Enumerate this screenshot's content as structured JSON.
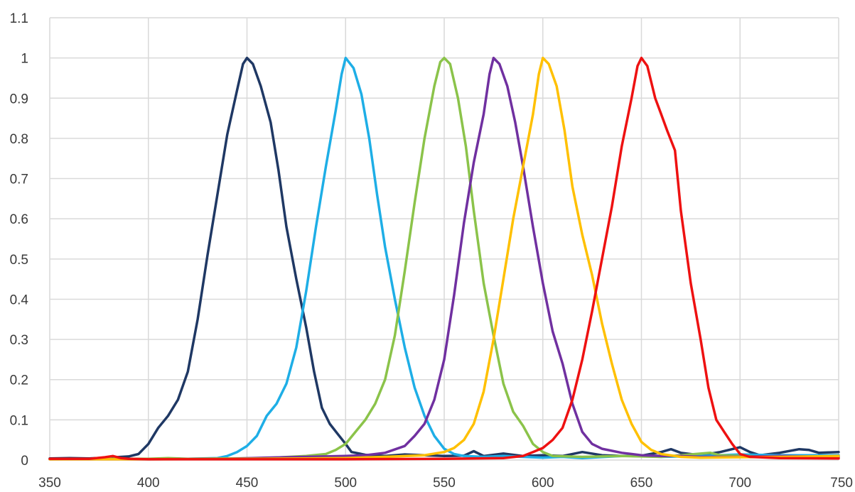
{
  "chart_data": {
    "type": "line",
    "title": "",
    "xlabel": "",
    "ylabel": "",
    "xlim": [
      350,
      750
    ],
    "ylim": [
      0,
      1.1
    ],
    "grid": true,
    "legend": "none",
    "x_ticks": [
      "350",
      "400",
      "450",
      "500",
      "550",
      "600",
      "650",
      "700",
      "750"
    ],
    "y_ticks": [
      "0",
      "0.1",
      "0.2",
      "0.3",
      "0.4",
      "0.5",
      "0.6",
      "0.7",
      "0.8",
      "0.9",
      "1",
      "1.1"
    ],
    "series": [
      {
        "color": "#1f3864",
        "points": [
          [
            350,
            0.004
          ],
          [
            360,
            0.005
          ],
          [
            370,
            0.004
          ],
          [
            380,
            0.006
          ],
          [
            390,
            0.009
          ],
          [
            395,
            0.015
          ],
          [
            400,
            0.04
          ],
          [
            405,
            0.08
          ],
          [
            410,
            0.11
          ],
          [
            415,
            0.15
          ],
          [
            420,
            0.22
          ],
          [
            425,
            0.35
          ],
          [
            430,
            0.51
          ],
          [
            435,
            0.66
          ],
          [
            440,
            0.81
          ],
          [
            445,
            0.92
          ],
          [
            448,
            0.985
          ],
          [
            450,
            1.0
          ],
          [
            453,
            0.985
          ],
          [
            457,
            0.93
          ],
          [
            462,
            0.84
          ],
          [
            466,
            0.72
          ],
          [
            470,
            0.58
          ],
          [
            475,
            0.45
          ],
          [
            480,
            0.33
          ],
          [
            484,
            0.22
          ],
          [
            488,
            0.13
          ],
          [
            492,
            0.09
          ],
          [
            496,
            0.065
          ],
          [
            500,
            0.04
          ],
          [
            503,
            0.02
          ],
          [
            510,
            0.013
          ],
          [
            520,
            0.01
          ],
          [
            530,
            0.014
          ],
          [
            540,
            0.012
          ],
          [
            550,
            0.01
          ],
          [
            560,
            0.011
          ],
          [
            565,
            0.022
          ],
          [
            570,
            0.01
          ],
          [
            580,
            0.016
          ],
          [
            590,
            0.01
          ],
          [
            600,
            0.012
          ],
          [
            610,
            0.01
          ],
          [
            620,
            0.02
          ],
          [
            630,
            0.012
          ],
          [
            640,
            0.01
          ],
          [
            650,
            0.011
          ],
          [
            660,
            0.02
          ],
          [
            665,
            0.027
          ],
          [
            670,
            0.018
          ],
          [
            680,
            0.012
          ],
          [
            690,
            0.02
          ],
          [
            700,
            0.032
          ],
          [
            705,
            0.02
          ],
          [
            710,
            0.012
          ],
          [
            720,
            0.018
          ],
          [
            730,
            0.027
          ],
          [
            735,
            0.025
          ],
          [
            740,
            0.018
          ],
          [
            750,
            0.02
          ]
        ]
      },
      {
        "color": "#1eaee6",
        "points": [
          [
            350,
            0.003
          ],
          [
            380,
            0.003
          ],
          [
            420,
            0.003
          ],
          [
            435,
            0.005
          ],
          [
            440,
            0.01
          ],
          [
            445,
            0.02
          ],
          [
            450,
            0.035
          ],
          [
            455,
            0.06
          ],
          [
            460,
            0.11
          ],
          [
            465,
            0.14
          ],
          [
            470,
            0.19
          ],
          [
            475,
            0.28
          ],
          [
            480,
            0.42
          ],
          [
            485,
            0.58
          ],
          [
            490,
            0.73
          ],
          [
            495,
            0.87
          ],
          [
            498,
            0.96
          ],
          [
            500,
            1.0
          ],
          [
            504,
            0.975
          ],
          [
            508,
            0.91
          ],
          [
            512,
            0.8
          ],
          [
            516,
            0.66
          ],
          [
            520,
            0.53
          ],
          [
            525,
            0.4
          ],
          [
            530,
            0.28
          ],
          [
            535,
            0.18
          ],
          [
            540,
            0.11
          ],
          [
            545,
            0.06
          ],
          [
            550,
            0.028
          ],
          [
            555,
            0.015
          ],
          [
            560,
            0.01
          ],
          [
            570,
            0.008
          ],
          [
            580,
            0.01
          ],
          [
            590,
            0.008
          ],
          [
            600,
            0.006
          ],
          [
            610,
            0.008
          ],
          [
            620,
            0.005
          ],
          [
            640,
            0.01
          ],
          [
            650,
            0.01
          ],
          [
            660,
            0.008
          ],
          [
            680,
            0.01
          ],
          [
            690,
            0.012
          ],
          [
            700,
            0.014
          ],
          [
            720,
            0.012
          ],
          [
            750,
            0.012
          ]
        ]
      },
      {
        "color": "#8bc34a",
        "points": [
          [
            350,
            0.002
          ],
          [
            380,
            0.003
          ],
          [
            400,
            0.003
          ],
          [
            410,
            0.005
          ],
          [
            420,
            0.003
          ],
          [
            440,
            0.004
          ],
          [
            460,
            0.005
          ],
          [
            480,
            0.01
          ],
          [
            490,
            0.015
          ],
          [
            495,
            0.025
          ],
          [
            500,
            0.04
          ],
          [
            505,
            0.07
          ],
          [
            510,
            0.1
          ],
          [
            515,
            0.14
          ],
          [
            520,
            0.2
          ],
          [
            525,
            0.31
          ],
          [
            530,
            0.47
          ],
          [
            535,
            0.64
          ],
          [
            540,
            0.8
          ],
          [
            545,
            0.93
          ],
          [
            548,
            0.99
          ],
          [
            550,
            1.0
          ],
          [
            553,
            0.985
          ],
          [
            557,
            0.9
          ],
          [
            561,
            0.78
          ],
          [
            565,
            0.62
          ],
          [
            570,
            0.44
          ],
          [
            575,
            0.31
          ],
          [
            580,
            0.19
          ],
          [
            585,
            0.12
          ],
          [
            590,
            0.085
          ],
          [
            595,
            0.04
          ],
          [
            600,
            0.02
          ],
          [
            605,
            0.01
          ],
          [
            620,
            0.008
          ],
          [
            640,
            0.01
          ],
          [
            660,
            0.008
          ],
          [
            670,
            0.012
          ],
          [
            680,
            0.016
          ],
          [
            685,
            0.018
          ],
          [
            690,
            0.012
          ],
          [
            700,
            0.01
          ],
          [
            720,
            0.008
          ],
          [
            750,
            0.006
          ]
        ]
      },
      {
        "color": "#7030a0",
        "points": [
          [
            350,
            0.002
          ],
          [
            400,
            0.002
          ],
          [
            440,
            0.003
          ],
          [
            460,
            0.006
          ],
          [
            480,
            0.008
          ],
          [
            500,
            0.01
          ],
          [
            510,
            0.012
          ],
          [
            520,
            0.018
          ],
          [
            530,
            0.035
          ],
          [
            535,
            0.06
          ],
          [
            540,
            0.09
          ],
          [
            545,
            0.15
          ],
          [
            550,
            0.25
          ],
          [
            555,
            0.41
          ],
          [
            560,
            0.59
          ],
          [
            565,
            0.74
          ],
          [
            570,
            0.86
          ],
          [
            573,
            0.96
          ],
          [
            575,
            1.0
          ],
          [
            578,
            0.985
          ],
          [
            582,
            0.93
          ],
          [
            586,
            0.84
          ],
          [
            590,
            0.73
          ],
          [
            595,
            0.58
          ],
          [
            600,
            0.44
          ],
          [
            605,
            0.32
          ],
          [
            610,
            0.24
          ],
          [
            615,
            0.14
          ],
          [
            620,
            0.07
          ],
          [
            625,
            0.04
          ],
          [
            630,
            0.028
          ],
          [
            640,
            0.018
          ],
          [
            650,
            0.012
          ],
          [
            660,
            0.01
          ],
          [
            670,
            0.01
          ],
          [
            680,
            0.008
          ],
          [
            700,
            0.008
          ],
          [
            720,
            0.01
          ],
          [
            750,
            0.008
          ]
        ]
      },
      {
        "color": "#ffc000",
        "points": [
          [
            350,
            0.002
          ],
          [
            400,
            0.002
          ],
          [
            450,
            0.003
          ],
          [
            480,
            0.004
          ],
          [
            500,
            0.005
          ],
          [
            520,
            0.008
          ],
          [
            540,
            0.012
          ],
          [
            550,
            0.02
          ],
          [
            555,
            0.03
          ],
          [
            560,
            0.05
          ],
          [
            565,
            0.09
          ],
          [
            570,
            0.17
          ],
          [
            575,
            0.3
          ],
          [
            580,
            0.45
          ],
          [
            585,
            0.6
          ],
          [
            590,
            0.73
          ],
          [
            595,
            0.86
          ],
          [
            598,
            0.96
          ],
          [
            600,
            1.0
          ],
          [
            603,
            0.985
          ],
          [
            607,
            0.93
          ],
          [
            611,
            0.82
          ],
          [
            615,
            0.68
          ],
          [
            620,
            0.56
          ],
          [
            625,
            0.46
          ],
          [
            630,
            0.34
          ],
          [
            635,
            0.24
          ],
          [
            640,
            0.15
          ],
          [
            645,
            0.09
          ],
          [
            650,
            0.045
          ],
          [
            655,
            0.025
          ],
          [
            660,
            0.015
          ],
          [
            670,
            0.008
          ],
          [
            680,
            0.006
          ],
          [
            700,
            0.007
          ],
          [
            720,
            0.008
          ],
          [
            750,
            0.01
          ]
        ]
      },
      {
        "color": "#ee1111",
        "points": [
          [
            350,
            0.003
          ],
          [
            370,
            0.003
          ],
          [
            378,
            0.007
          ],
          [
            382,
            0.01
          ],
          [
            386,
            0.005
          ],
          [
            390,
            0.003
          ],
          [
            400,
            0.002
          ],
          [
            450,
            0.002
          ],
          [
            500,
            0.002
          ],
          [
            550,
            0.003
          ],
          [
            580,
            0.005
          ],
          [
            590,
            0.01
          ],
          [
            595,
            0.02
          ],
          [
            600,
            0.03
          ],
          [
            605,
            0.05
          ],
          [
            610,
            0.08
          ],
          [
            615,
            0.15
          ],
          [
            620,
            0.25
          ],
          [
            625,
            0.37
          ],
          [
            630,
            0.5
          ],
          [
            635,
            0.63
          ],
          [
            640,
            0.78
          ],
          [
            645,
            0.9
          ],
          [
            648,
            0.98
          ],
          [
            650,
            1.0
          ],
          [
            653,
            0.98
          ],
          [
            657,
            0.9
          ],
          [
            660,
            0.86
          ],
          [
            663,
            0.82
          ],
          [
            667,
            0.77
          ],
          [
            670,
            0.62
          ],
          [
            675,
            0.44
          ],
          [
            680,
            0.3
          ],
          [
            684,
            0.18
          ],
          [
            688,
            0.1
          ],
          [
            692,
            0.07
          ],
          [
            696,
            0.04
          ],
          [
            700,
            0.015
          ],
          [
            705,
            0.008
          ],
          [
            720,
            0.005
          ],
          [
            750,
            0.004
          ]
        ]
      }
    ]
  }
}
